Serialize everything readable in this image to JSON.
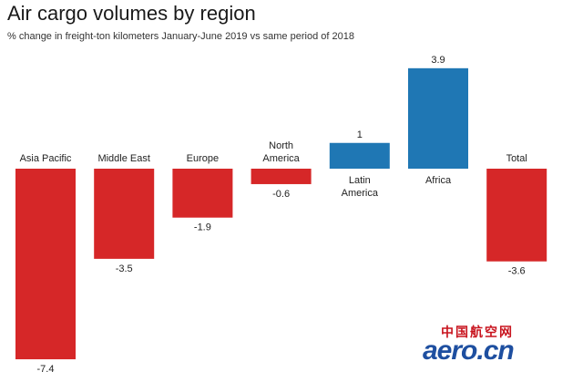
{
  "chart_data": {
    "type": "bar",
    "title": "Air cargo volumes by region",
    "subtitle": "% change in freight-ton kilometers January-June 2019 vs same period of 2018",
    "categories": [
      "Asia Pacific",
      "Middle East",
      "Europe",
      "North America",
      "Latin America",
      "Africa",
      "Total"
    ],
    "category_lines": [
      [
        "Asia Pacific"
      ],
      [
        "Middle East"
      ],
      [
        "Europe"
      ],
      [
        "North",
        "America"
      ],
      [
        "Latin",
        "America"
      ],
      [
        "Africa"
      ],
      [
        "Total"
      ]
    ],
    "values": [
      -7.4,
      -3.5,
      -1.9,
      -0.6,
      1,
      3.9,
      -3.6
    ],
    "value_labels": [
      "-7.4",
      "-3.5",
      "-1.9",
      "-0.6",
      "1",
      "3.9",
      "-3.6"
    ],
    "colors": {
      "negative": "#d62728",
      "positive": "#1f77b4"
    },
    "ylim": [
      -7.4,
      3.9
    ],
    "grid": false,
    "legend": "none"
  },
  "watermark": {
    "cn": "中国航空网",
    "en": "aero.cn"
  }
}
